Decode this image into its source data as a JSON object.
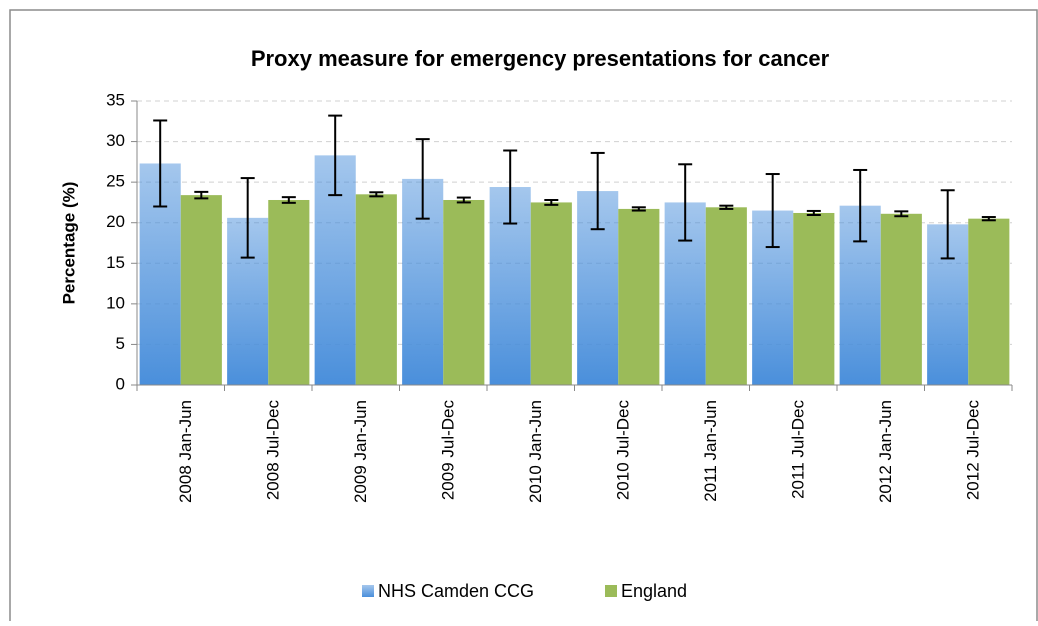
{
  "chart_data": {
    "type": "bar",
    "title": "Proxy measure for emergency presentations for cancer",
    "y_label": "Percentage (%)",
    "categories": [
      "2008 Jan-Jun",
      "2008 Jul-Dec",
      "2009 Jan-Jun",
      "2009 Jul-Dec",
      "2010 Jan-Jun",
      "2010 Jul-Dec",
      "2011 Jan-Jun",
      "2011 Jul-Dec",
      "2012 Jan-Jun",
      "2012 Jul-Dec"
    ],
    "series": [
      {
        "name": "NHS Camden CCG",
        "color": "#4a8fdb",
        "gradient": true,
        "values": [
          27.3,
          20.6,
          28.3,
          25.4,
          24.4,
          23.9,
          22.5,
          21.5,
          22.1,
          19.8
        ],
        "errors": [
          5.3,
          4.9,
          4.9,
          4.9,
          4.5,
          4.7,
          4.7,
          4.5,
          4.4,
          4.2
        ]
      },
      {
        "name": "England",
        "color": "#9bbb59",
        "values": [
          23.4,
          22.8,
          23.5,
          22.8,
          22.5,
          21.7,
          21.9,
          21.2,
          21.1,
          20.5
        ],
        "errors": [
          0.4,
          0.35,
          0.25,
          0.3,
          0.3,
          0.2,
          0.2,
          0.25,
          0.3,
          0.2
        ]
      }
    ],
    "ylim": [
      0,
      35
    ],
    "yticks": [
      0,
      5,
      10,
      15,
      20,
      25,
      30,
      35
    ],
    "grid": true,
    "legend": "bottom"
  }
}
